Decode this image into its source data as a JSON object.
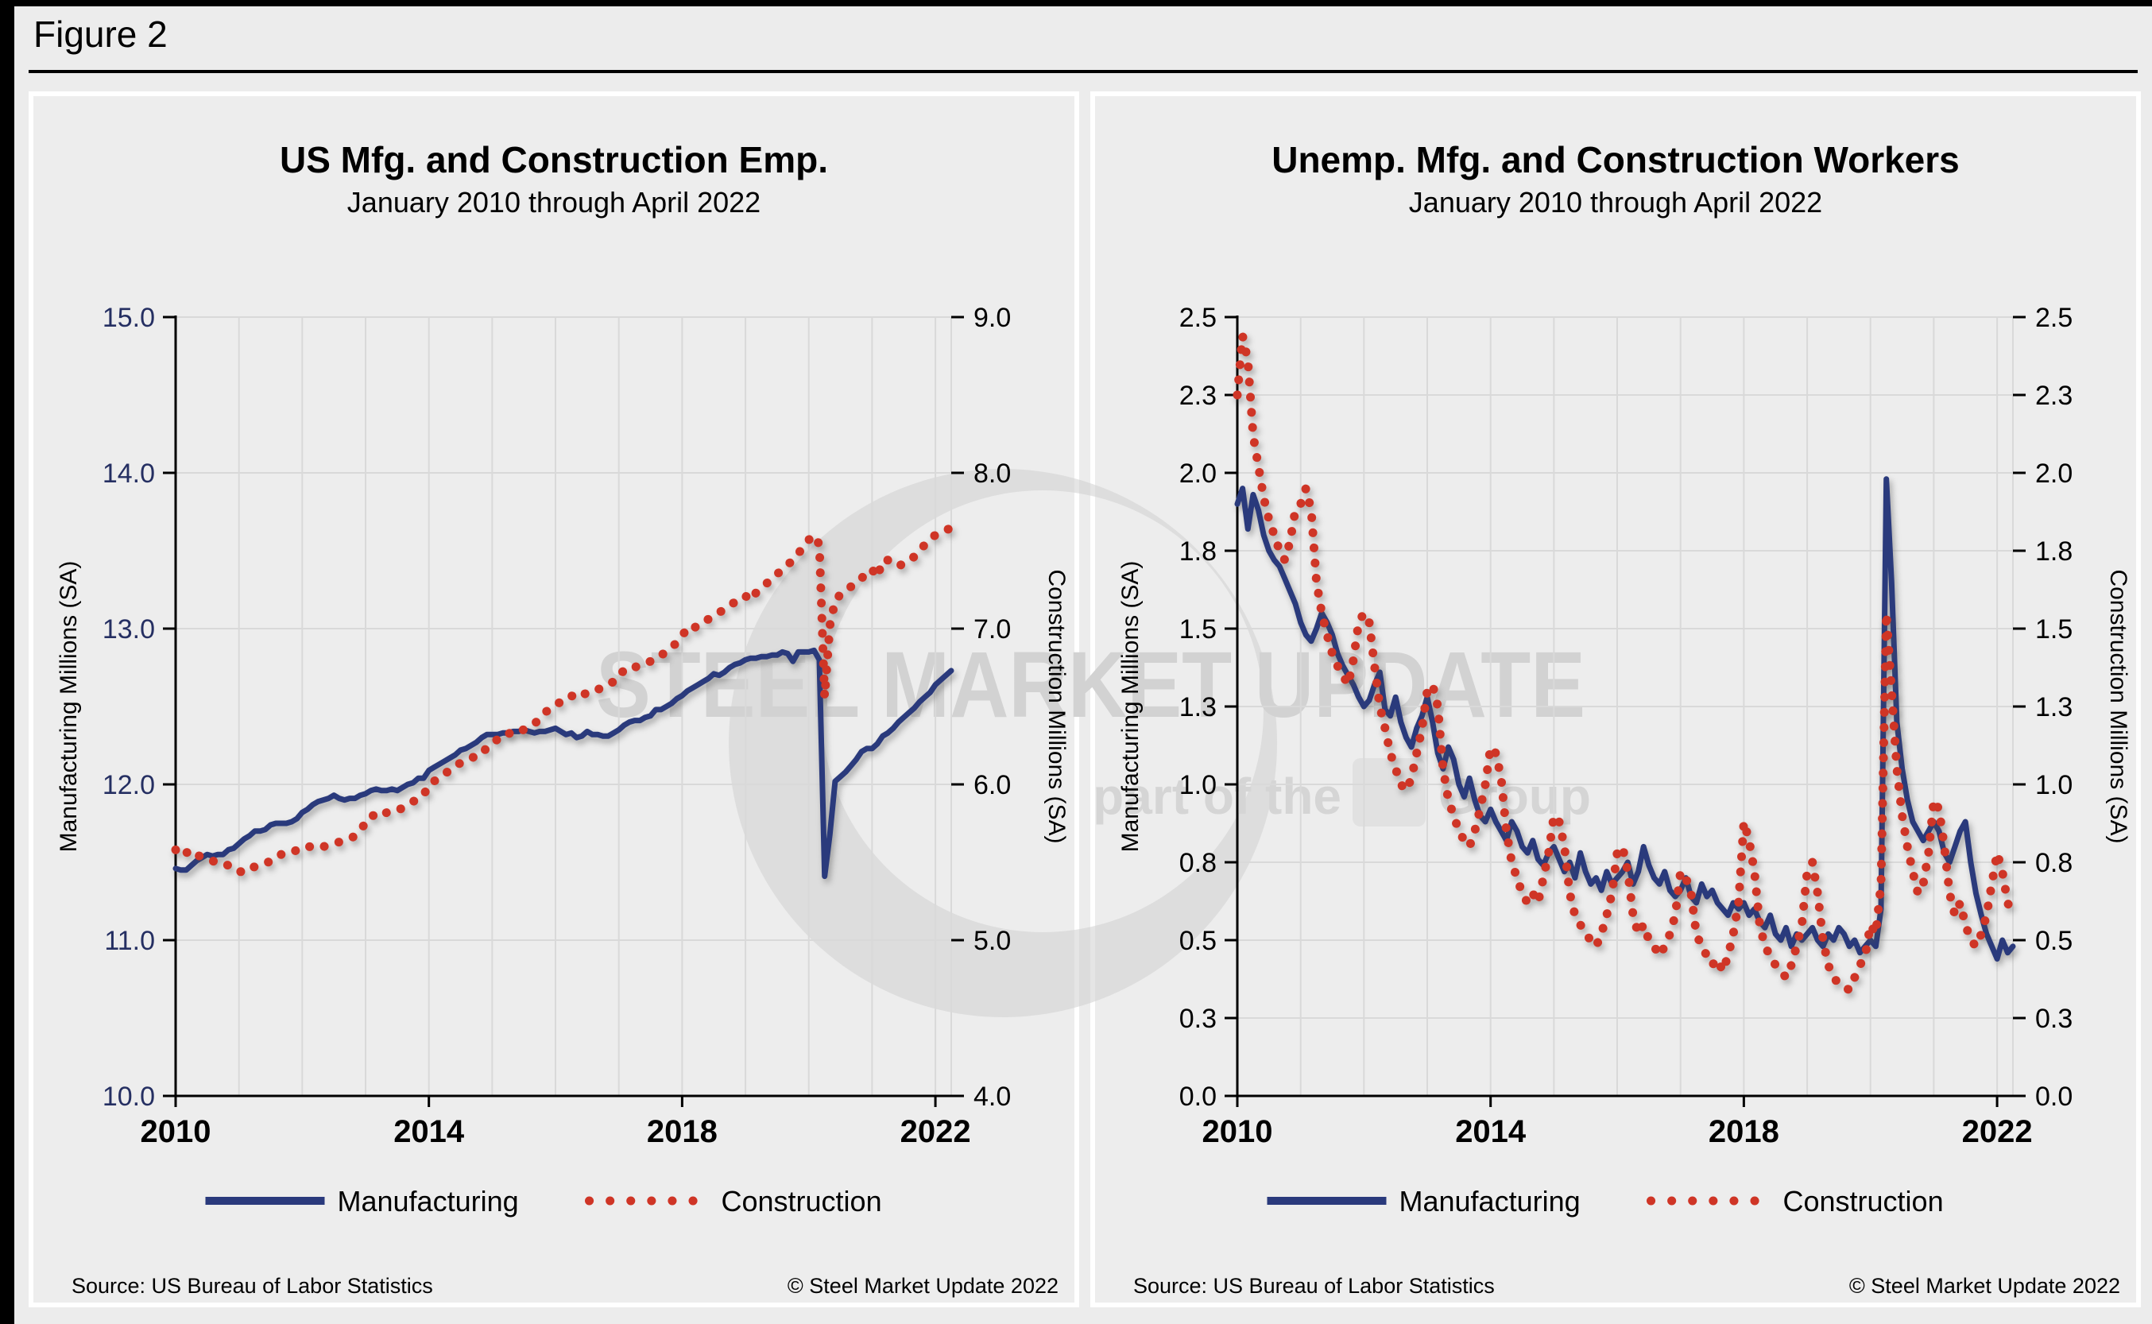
{
  "page": {
    "figure_label": "Figure 2"
  },
  "watermark": {
    "line1": "STEEL MARKET UPDATE",
    "line2_prefix": "part of the",
    "line2_suffix": "Group"
  },
  "colors": {
    "manufacturing_line": "#2A3A7C",
    "construction_line": "#CF3526",
    "left_axis_label_navy": "#252F62",
    "axis_black": "#000000",
    "gridline": "#D9D9D9",
    "panel_background": "#EDEDED",
    "watermark_gray": "#D2D2D2"
  },
  "chart_data": [
    {
      "type": "line",
      "title": "US Mfg. and Construction Emp.",
      "subtitle": "January 2010 through April 2022",
      "x": {
        "unit": "month",
        "start": "2010-01",
        "end": "2022-04",
        "tick_labels": [
          "2010",
          "2014",
          "2018",
          "2022"
        ],
        "tick_month_index": [
          0,
          48,
          96,
          144
        ],
        "grid": "yearly"
      },
      "left_axis": {
        "title": "Manufacturing Millions (SA)",
        "min": 10,
        "max": 15,
        "tick_label_color": "#252F62",
        "ticks": [
          {
            "label": "15.0",
            "value": 15.0
          },
          {
            "label": "14.0",
            "value": 14.0
          },
          {
            "label": "13.0",
            "value": 13.0
          },
          {
            "label": "12.0",
            "value": 12.0
          },
          {
            "label": "11.0",
            "value": 11.0
          },
          {
            "label": "10.0",
            "value": 10.0
          }
        ]
      },
      "right_axis": {
        "title": "Construction Millions (SA)",
        "min": 4,
        "max": 9,
        "tick_label_color": "#000000",
        "ticks": [
          {
            "label": "9.0",
            "value": 9.0
          },
          {
            "label": "8.0",
            "value": 8.0
          },
          {
            "label": "7.0",
            "value": 7.0
          },
          {
            "label": "6.0",
            "value": 6.0
          },
          {
            "label": "5.0",
            "value": 5.0
          },
          {
            "label": "4.0",
            "value": 4.0
          }
        ]
      },
      "series": [
        {
          "name": "Manufacturing",
          "axis": "left",
          "style": "solid",
          "color": "#2A3A7C",
          "values": [
            11.46,
            11.45,
            11.45,
            11.48,
            11.51,
            11.53,
            11.55,
            11.54,
            11.55,
            11.55,
            11.58,
            11.59,
            11.62,
            11.65,
            11.67,
            11.7,
            11.7,
            11.71,
            11.74,
            11.75,
            11.75,
            11.75,
            11.76,
            11.78,
            11.82,
            11.84,
            11.87,
            11.89,
            11.9,
            11.91,
            11.93,
            11.91,
            11.9,
            11.91,
            11.91,
            11.93,
            11.94,
            11.96,
            11.97,
            11.96,
            11.96,
            11.97,
            11.96,
            11.98,
            12.0,
            12.01,
            12.04,
            12.04,
            12.09,
            12.11,
            12.13,
            12.15,
            12.17,
            12.19,
            12.22,
            12.23,
            12.25,
            12.27,
            12.3,
            12.32,
            12.32,
            12.32,
            12.33,
            12.33,
            12.34,
            12.34,
            12.35,
            12.34,
            12.33,
            12.34,
            12.34,
            12.35,
            12.36,
            12.34,
            12.32,
            12.33,
            12.3,
            12.31,
            12.34,
            12.32,
            12.32,
            12.31,
            12.31,
            12.33,
            12.35,
            12.38,
            12.4,
            12.41,
            12.41,
            12.43,
            12.44,
            12.48,
            12.48,
            12.5,
            12.52,
            12.55,
            12.57,
            12.6,
            12.62,
            12.64,
            12.66,
            12.68,
            12.71,
            12.7,
            12.72,
            12.75,
            12.77,
            12.78,
            12.8,
            12.81,
            12.81,
            12.82,
            12.82,
            12.83,
            12.83,
            12.85,
            12.84,
            12.79,
            12.85,
            12.85,
            12.85,
            12.86,
            12.8,
            11.41,
            11.68,
            12.02,
            12.05,
            12.08,
            12.12,
            12.16,
            12.21,
            12.23,
            12.23,
            12.26,
            12.31,
            12.33,
            12.36,
            12.4,
            12.43,
            12.46,
            12.49,
            12.53,
            12.56,
            12.59,
            12.64,
            12.67,
            12.7,
            12.73
          ]
        },
        {
          "name": "Construction",
          "axis": "right",
          "style": "dotted",
          "color": "#CF3526",
          "values": [
            5.58,
            5.54,
            5.56,
            5.58,
            5.55,
            5.53,
            5.52,
            5.51,
            5.49,
            5.49,
            5.48,
            5.45,
            5.44,
            5.44,
            5.47,
            5.47,
            5.48,
            5.49,
            5.51,
            5.52,
            5.55,
            5.56,
            5.56,
            5.58,
            5.6,
            5.6,
            5.6,
            5.61,
            5.6,
            5.61,
            5.62,
            5.63,
            5.64,
            5.65,
            5.67,
            5.71,
            5.75,
            5.8,
            5.8,
            5.79,
            5.82,
            5.83,
            5.83,
            5.85,
            5.87,
            5.89,
            5.91,
            5.93,
            6.0,
            6.02,
            6.05,
            6.07,
            6.09,
            6.11,
            6.14,
            6.15,
            6.17,
            6.18,
            6.19,
            6.24,
            6.26,
            6.29,
            6.29,
            6.32,
            6.35,
            6.35,
            6.35,
            6.37,
            6.39,
            6.42,
            6.46,
            6.49,
            6.51,
            6.53,
            6.56,
            6.57,
            6.55,
            6.57,
            6.59,
            6.59,
            6.61,
            6.62,
            6.64,
            6.66,
            6.68,
            6.74,
            6.75,
            6.75,
            6.77,
            6.78,
            6.79,
            6.82,
            6.83,
            6.85,
            6.88,
            6.91,
            6.95,
            7.01,
            7.0,
            7.02,
            7.05,
            7.06,
            7.08,
            7.1,
            7.13,
            7.15,
            7.17,
            7.2,
            7.21,
            7.18,
            7.23,
            7.26,
            7.29,
            7.32,
            7.35,
            7.38,
            7.41,
            7.44,
            7.48,
            7.53,
            7.57,
            7.6,
            7.54,
            6.56,
            7.02,
            7.18,
            7.22,
            7.24,
            7.27,
            7.29,
            7.32,
            7.37,
            7.38,
            7.33,
            7.44,
            7.44,
            7.42,
            7.4,
            7.42,
            7.45,
            7.46,
            7.5,
            7.54,
            7.58,
            7.6,
            7.62,
            7.63,
            7.65
          ]
        }
      ],
      "legend": [
        "Manufacturing",
        "Construction"
      ],
      "legend_position": "bottom",
      "grid": "on",
      "source": "Source: US Bureau  of Labor Statistics",
      "copyright": "© Steel Market Update 2022"
    },
    {
      "type": "line",
      "title": "Unemp. Mfg. and Construction Workers",
      "subtitle": "January 2010 through April 2022",
      "x": {
        "unit": "month",
        "start": "2010-01",
        "end": "2022-04",
        "tick_labels": [
          "2010",
          "2014",
          "2018",
          "2022"
        ],
        "tick_month_index": [
          0,
          48,
          96,
          144
        ],
        "grid": "yearly"
      },
      "left_axis": {
        "title": "Manufacturing Millions (SA)",
        "min": 0,
        "max": 2.5,
        "tick_label_color": "#000000",
        "ticks": [
          {
            "label": "2.5",
            "value": 2.5
          },
          {
            "label": "2.3",
            "value": 2.25
          },
          {
            "label": "2.0",
            "value": 2.0
          },
          {
            "label": "1.8",
            "value": 1.75
          },
          {
            "label": "1.5",
            "value": 1.5
          },
          {
            "label": "1.3",
            "value": 1.25
          },
          {
            "label": "1.0",
            "value": 1.0
          },
          {
            "label": "0.8",
            "value": 0.75
          },
          {
            "label": "0.5",
            "value": 0.5
          },
          {
            "label": "0.3",
            "value": 0.25
          },
          {
            "label": "0.0",
            "value": 0.0
          }
        ]
      },
      "right_axis": {
        "title": "Construction Millions (SA)",
        "min": 0,
        "max": 2.5,
        "tick_label_color": "#000000",
        "ticks": [
          {
            "label": "2.5",
            "value": 2.5
          },
          {
            "label": "2.3",
            "value": 2.25
          },
          {
            "label": "2.0",
            "value": 2.0
          },
          {
            "label": "1.8",
            "value": 1.75
          },
          {
            "label": "1.5",
            "value": 1.5
          },
          {
            "label": "1.3",
            "value": 1.25
          },
          {
            "label": "1.0",
            "value": 1.0
          },
          {
            "label": "0.8",
            "value": 0.75
          },
          {
            "label": "0.5",
            "value": 0.5
          },
          {
            "label": "0.3",
            "value": 0.25
          },
          {
            "label": "0.0",
            "value": 0.0
          }
        ]
      },
      "series": [
        {
          "name": "Manufacturing",
          "axis": "left",
          "style": "solid",
          "color": "#2A3A7C",
          "values": [
            1.9,
            1.95,
            1.82,
            1.93,
            1.88,
            1.8,
            1.75,
            1.72,
            1.7,
            1.66,
            1.62,
            1.58,
            1.52,
            1.48,
            1.46,
            1.5,
            1.55,
            1.52,
            1.48,
            1.42,
            1.38,
            1.35,
            1.32,
            1.28,
            1.25,
            1.27,
            1.32,
            1.36,
            1.24,
            1.22,
            1.28,
            1.2,
            1.15,
            1.12,
            1.18,
            1.22,
            1.28,
            1.2,
            1.1,
            1.05,
            1.12,
            1.08,
            1.0,
            0.96,
            1.02,
            0.95,
            0.9,
            0.88,
            0.92,
            0.88,
            0.85,
            0.82,
            0.88,
            0.85,
            0.8,
            0.78,
            0.82,
            0.76,
            0.74,
            0.78,
            0.8,
            0.76,
            0.72,
            0.75,
            0.7,
            0.78,
            0.72,
            0.68,
            0.7,
            0.66,
            0.72,
            0.68,
            0.7,
            0.72,
            0.75,
            0.68,
            0.72,
            0.8,
            0.74,
            0.7,
            0.68,
            0.72,
            0.66,
            0.64,
            0.66,
            0.7,
            0.64,
            0.62,
            0.68,
            0.64,
            0.66,
            0.62,
            0.6,
            0.58,
            0.62,
            0.6,
            0.62,
            0.58,
            0.6,
            0.56,
            0.54,
            0.58,
            0.52,
            0.5,
            0.54,
            0.48,
            0.52,
            0.5,
            0.52,
            0.54,
            0.5,
            0.48,
            0.52,
            0.5,
            0.54,
            0.52,
            0.48,
            0.5,
            0.46,
            0.48,
            0.5,
            0.48,
            0.6,
            1.98,
            1.65,
            1.2,
            1.05,
            0.95,
            0.88,
            0.85,
            0.82,
            0.85,
            0.88,
            0.85,
            0.78,
            0.75,
            0.8,
            0.85,
            0.88,
            0.75,
            0.65,
            0.58,
            0.52,
            0.48,
            0.44,
            0.5,
            0.46,
            0.48
          ]
        },
        {
          "name": "Construction",
          "axis": "right",
          "style": "dotted",
          "color": "#CF3526",
          "values": [
            2.25,
            2.44,
            2.36,
            2.12,
            2.02,
            1.92,
            1.85,
            1.8,
            1.75,
            1.72,
            1.78,
            1.88,
            1.9,
            1.95,
            1.88,
            1.65,
            1.55,
            1.48,
            1.42,
            1.38,
            1.35,
            1.32,
            1.4,
            1.52,
            1.55,
            1.52,
            1.38,
            1.25,
            1.18,
            1.1,
            1.05,
            1.0,
            0.98,
            1.02,
            1.1,
            1.18,
            1.3,
            1.32,
            1.25,
            1.05,
            0.95,
            0.9,
            0.85,
            0.82,
            0.8,
            0.85,
            0.92,
            1.0,
            1.12,
            1.1,
            1.02,
            0.85,
            0.75,
            0.7,
            0.65,
            0.62,
            0.65,
            0.62,
            0.7,
            0.78,
            0.9,
            0.88,
            0.8,
            0.65,
            0.58,
            0.55,
            0.52,
            0.5,
            0.48,
            0.52,
            0.58,
            0.65,
            0.78,
            0.8,
            0.72,
            0.58,
            0.52,
            0.55,
            0.5,
            0.48,
            0.45,
            0.48,
            0.52,
            0.58,
            0.72,
            0.7,
            0.65,
            0.52,
            0.48,
            0.45,
            0.42,
            0.44,
            0.4,
            0.45,
            0.52,
            0.62,
            0.88,
            0.82,
            0.72,
            0.55,
            0.48,
            0.45,
            0.42,
            0.4,
            0.38,
            0.42,
            0.48,
            0.55,
            0.72,
            0.75,
            0.65,
            0.5,
            0.42,
            0.38,
            0.36,
            0.35,
            0.34,
            0.38,
            0.42,
            0.45,
            0.55,
            0.52,
            0.68,
            1.55,
            1.3,
            1.05,
            0.9,
            0.8,
            0.72,
            0.65,
            0.68,
            0.78,
            0.95,
            0.92,
            0.8,
            0.65,
            0.58,
            0.62,
            0.55,
            0.5,
            0.48,
            0.52,
            0.58,
            0.68,
            0.78,
            0.72,
            0.62,
            0.58
          ]
        }
      ],
      "legend": [
        "Manufacturing",
        "Construction"
      ],
      "legend_position": "bottom",
      "grid": "on",
      "source": "Source: US Bureau  of Labor Statistics",
      "copyright": "© Steel Market Update 2022"
    }
  ]
}
